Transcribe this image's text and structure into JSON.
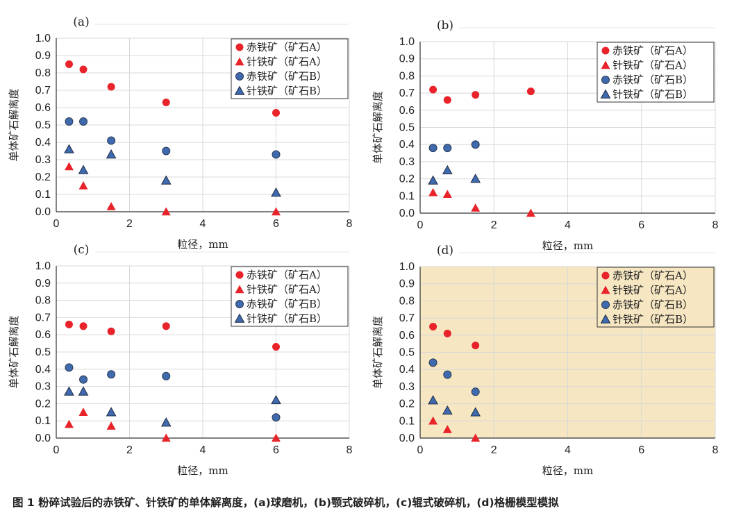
{
  "caption": "图 1  粉碎试验后的赤铁矿、针铁矿的单体解离度，(a)球磨机，(b)颚式破碎机，(c)辊式破碎机，(d)格栅模型模拟",
  "colors": {
    "ore_a": "#e8232a",
    "ore_b": "#3f6aad",
    "grid": "#d8d8d8",
    "panel_d_bg": "#f6e6c2"
  },
  "chart_data": [
    {
      "type": "scatter",
      "title": "(a)",
      "xlabel": "粒径，mm",
      "ylabel": "单体矿石解离度",
      "xlim": [
        0,
        8
      ],
      "ylim": [
        0,
        1.0
      ],
      "xticks": [
        "0",
        "2",
        "4",
        "6",
        "8"
      ],
      "yticks": [
        "0.0",
        "0.1",
        "0.2",
        "0.3",
        "0.4",
        "0.5",
        "0.6",
        "0.7",
        "0.8",
        "0.9",
        "1.0"
      ],
      "legend_position": "top-right",
      "series": [
        {
          "name": "赤铁矿（矿石A）",
          "marker": "circle",
          "color": "#e8232a",
          "x": [
            0.35,
            0.74,
            1.5,
            3.0,
            6.0
          ],
          "y": [
            0.85,
            0.82,
            0.72,
            0.63,
            0.57
          ]
        },
        {
          "name": "针铁矿（矿石A）",
          "marker": "triangle",
          "color": "#e8232a",
          "x": [
            0.35,
            0.74,
            1.5,
            3.0,
            6.0
          ],
          "y": [
            0.26,
            0.15,
            0.03,
            0.0,
            0.0
          ]
        },
        {
          "name": "赤铁矿（矿石B）",
          "marker": "circle",
          "color": "#3f6aad",
          "x": [
            0.35,
            0.74,
            1.5,
            3.0,
            6.0
          ],
          "y": [
            0.52,
            0.52,
            0.41,
            0.35,
            0.33
          ]
        },
        {
          "name": "针铁矿（矿石B）",
          "marker": "triangle",
          "color": "#3f6aad",
          "x": [
            0.35,
            0.74,
            1.5,
            3.0,
            6.0
          ],
          "y": [
            0.36,
            0.24,
            0.33,
            0.18,
            0.11
          ]
        }
      ]
    },
    {
      "type": "scatter",
      "title": "(b)",
      "xlabel": "粒径，mm",
      "ylabel": "单体矿石解离度",
      "xlim": [
        0,
        8
      ],
      "ylim": [
        0,
        1.0
      ],
      "xticks": [
        "0",
        "2",
        "4",
        "6",
        "8"
      ],
      "yticks": [
        "0.0",
        "0.1",
        "0.2",
        "0.3",
        "0.4",
        "0.5",
        "0.6",
        "0.7",
        "0.8",
        "0.9",
        "1.0"
      ],
      "legend_position": "top-right",
      "series": [
        {
          "name": "赤铁矿（矿石A）",
          "marker": "circle",
          "color": "#e8232a",
          "x": [
            0.35,
            0.74,
            1.5,
            3.0
          ],
          "y": [
            0.72,
            0.66,
            0.69,
            0.71
          ]
        },
        {
          "name": "针铁矿（矿石A）",
          "marker": "triangle",
          "color": "#e8232a",
          "x": [
            0.35,
            0.74,
            1.5,
            3.0
          ],
          "y": [
            0.12,
            0.11,
            0.03,
            0.0
          ]
        },
        {
          "name": "赤铁矿（矿石B）",
          "marker": "circle",
          "color": "#3f6aad",
          "x": [
            0.35,
            0.74,
            1.5
          ],
          "y": [
            0.38,
            0.38,
            0.4
          ]
        },
        {
          "name": "针铁矿（矿石B）",
          "marker": "triangle",
          "color": "#3f6aad",
          "x": [
            0.35,
            0.74,
            1.5
          ],
          "y": [
            0.19,
            0.25,
            0.2
          ]
        }
      ]
    },
    {
      "type": "scatter",
      "title": "(c)",
      "xlabel": "粒径，mm",
      "ylabel": "单体矿石解离度",
      "xlim": [
        0,
        8
      ],
      "ylim": [
        0,
        1.0
      ],
      "xticks": [
        "0",
        "2",
        "4",
        "6",
        "8"
      ],
      "yticks": [
        "0.0",
        "0.1",
        "0.2",
        "0.3",
        "0.4",
        "0.5",
        "0.6",
        "0.7",
        "0.8",
        "0.9",
        "1.0"
      ],
      "legend_position": "top-right",
      "series": [
        {
          "name": "赤铁矿（矿石A）",
          "marker": "circle",
          "color": "#e8232a",
          "x": [
            0.35,
            0.74,
            1.5,
            3.0,
            6.0
          ],
          "y": [
            0.66,
            0.65,
            0.62,
            0.65,
            0.53
          ]
        },
        {
          "name": "针铁矿（矿石A）",
          "marker": "triangle",
          "color": "#e8232a",
          "x": [
            0.35,
            0.74,
            1.5,
            3.0,
            6.0
          ],
          "y": [
            0.08,
            0.15,
            0.07,
            0.0,
            0.0
          ]
        },
        {
          "name": "赤铁矿（矿石B）",
          "marker": "circle",
          "color": "#3f6aad",
          "x": [
            0.35,
            0.74,
            1.5,
            3.0,
            6.0
          ],
          "y": [
            0.41,
            0.34,
            0.37,
            0.36,
            0.12
          ]
        },
        {
          "name": "针铁矿（矿石B）",
          "marker": "triangle",
          "color": "#3f6aad",
          "x": [
            0.35,
            0.74,
            1.5,
            3.0,
            6.0
          ],
          "y": [
            0.27,
            0.27,
            0.15,
            0.09,
            0.22
          ]
        }
      ]
    },
    {
      "type": "scatter",
      "title": "(d)",
      "xlabel": "粒径，mm",
      "ylabel": "单体矿石解离度",
      "xlim": [
        0,
        8
      ],
      "ylim": [
        0,
        1.0
      ],
      "xticks": [
        "0",
        "2",
        "4",
        "6",
        "8"
      ],
      "yticks": [
        "0.0",
        "0.1",
        "0.2",
        "0.3",
        "0.4",
        "0.5",
        "0.6",
        "0.7",
        "0.8",
        "0.9",
        "1.0"
      ],
      "legend_position": "top-right",
      "background": "#f6e6c2",
      "series": [
        {
          "name": "赤铁矿（矿石A）",
          "marker": "circle",
          "color": "#e8232a",
          "x": [
            0.35,
            0.74,
            1.5
          ],
          "y": [
            0.65,
            0.61,
            0.54
          ]
        },
        {
          "name": "针铁矿（矿石A）",
          "marker": "triangle",
          "color": "#e8232a",
          "x": [
            0.35,
            0.74,
            1.5
          ],
          "y": [
            0.1,
            0.05,
            0.0
          ]
        },
        {
          "name": "赤铁矿（矿石B）",
          "marker": "circle",
          "color": "#3f6aad",
          "x": [
            0.35,
            0.74,
            1.5
          ],
          "y": [
            0.44,
            0.37,
            0.27
          ]
        },
        {
          "name": "针铁矿（矿石B）",
          "marker": "triangle",
          "color": "#3f6aad",
          "x": [
            0.35,
            0.74,
            1.5
          ],
          "y": [
            0.22,
            0.16,
            0.15
          ]
        }
      ]
    }
  ]
}
